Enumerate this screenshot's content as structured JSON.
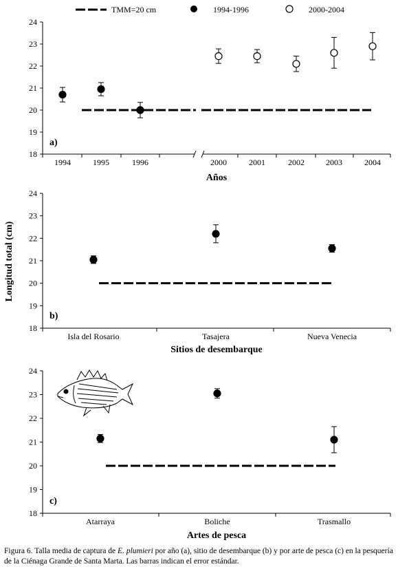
{
  "legend": {
    "tmm": "TMM=20 cm",
    "series1": "1994-1996",
    "series2": "2000-2004"
  },
  "shared_ylabel": "Longitud total (cm)",
  "caption": {
    "prefix": "Figura 6. Talla media de captura de ",
    "species": "E. plumieri",
    "suffix": " por año (a), sitio de desembarque (b) y por arte de pesca (c) en la pesquería de la Ciénaga Grande de Santa Marta. Las barras indican el error estándar."
  },
  "chart_data": [
    {
      "type": "scatter",
      "panel": "a)",
      "xlabel": "Años",
      "ylim": [
        18,
        24
      ],
      "yticks": [
        18,
        19,
        20,
        21,
        22,
        23,
        24
      ],
      "categories": [
        "1994",
        "1995",
        "1996",
        "",
        "2000",
        "2001",
        "2002",
        "2003",
        "2004"
      ],
      "axis_break_after_index": 3,
      "reference_line": {
        "name": "TMM=20 cm",
        "value": 20
      },
      "series": [
        {
          "name": "1994-1996",
          "marker": "filled",
          "points": [
            {
              "x": "1994",
              "y": 20.7,
              "err": 0.33
            },
            {
              "x": "1995",
              "y": 20.95,
              "err": 0.3
            },
            {
              "x": "1996",
              "y": 20.0,
              "err": 0.35
            }
          ]
        },
        {
          "name": "2000-2004",
          "marker": "open",
          "points": [
            {
              "x": "2000",
              "y": 22.45,
              "err": 0.33
            },
            {
              "x": "2001",
              "y": 22.45,
              "err": 0.3
            },
            {
              "x": "2002",
              "y": 22.1,
              "err": 0.35
            },
            {
              "x": "2003",
              "y": 22.6,
              "err": 0.7
            },
            {
              "x": "2004",
              "y": 22.9,
              "err": 0.62
            }
          ]
        }
      ]
    },
    {
      "type": "scatter",
      "panel": "b)",
      "xlabel": "Sitios de desembarque",
      "ylim": [
        18,
        24
      ],
      "yticks": [
        18,
        19,
        20,
        21,
        22,
        23,
        24
      ],
      "categories": [
        "Isla del Rosario",
        "Tasajera",
        "Nueva Venecia"
      ],
      "reference_line": {
        "name": "TMM=20 cm",
        "value": 20
      },
      "series": [
        {
          "name": "",
          "marker": "filled",
          "points": [
            {
              "x": "Isla del Rosario",
              "y": 21.05,
              "err": 0.17
            },
            {
              "x": "Tasajera",
              "y": 22.2,
              "err": 0.4
            },
            {
              "x": "Nueva Venecia",
              "y": 21.55,
              "err": 0.17
            }
          ]
        }
      ]
    },
    {
      "type": "scatter",
      "panel": "c)",
      "xlabel": "Artes de pesca",
      "ylim": [
        18,
        24
      ],
      "yticks": [
        18,
        19,
        20,
        21,
        22,
        23,
        24
      ],
      "categories": [
        "Atarraya",
        "Boliche",
        "Trasmallo"
      ],
      "reference_line": {
        "name": "TMM=20 cm",
        "value": 20
      },
      "series": [
        {
          "name": "",
          "marker": "filled",
          "points": [
            {
              "x": "Atarraya",
              "y": 21.15,
              "err": 0.17
            },
            {
              "x": "Boliche",
              "y": 23.05,
              "err": 0.2
            },
            {
              "x": "Trasmallo",
              "y": 21.1,
              "err": 0.55
            }
          ]
        }
      ]
    }
  ]
}
